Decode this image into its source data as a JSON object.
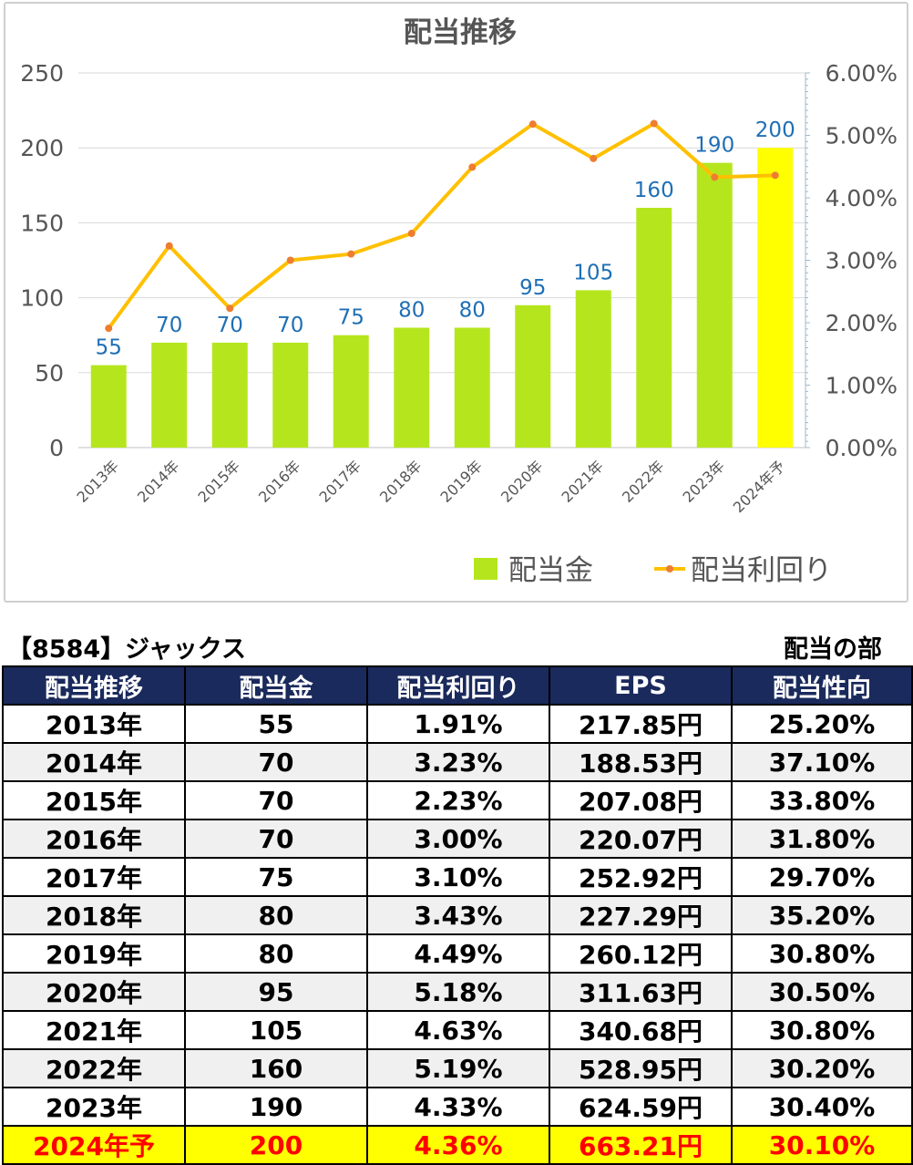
{
  "chart_data": {
    "type": "bar+line",
    "title": "配当推移",
    "categories": [
      "2013年",
      "2014年",
      "2015年",
      "2016年",
      "2017年",
      "2018年",
      "2019年",
      "2020年",
      "2021年",
      "2022年",
      "2023年",
      "2024年予"
    ],
    "series": [
      {
        "name": "配当金",
        "type": "bar",
        "axis": "left",
        "values": [
          55,
          70,
          70,
          70,
          75,
          80,
          80,
          95,
          105,
          160,
          190,
          200
        ],
        "colors": {
          "bar": "#b5e61d",
          "highlight_bar": "#ffff00",
          "label": "#1f6fb5"
        }
      },
      {
        "name": "配当利回り",
        "type": "line",
        "axis": "right",
        "values": [
          1.91,
          3.23,
          2.23,
          3.0,
          3.1,
          3.43,
          4.49,
          5.18,
          4.63,
          5.19,
          4.33,
          4.36
        ],
        "colors": {
          "line": "#ffc000",
          "marker": "#ed7d31"
        }
      }
    ],
    "y_left": {
      "min": 0,
      "max": 250,
      "ticks": [
        "0",
        "50",
        "100",
        "150",
        "200",
        "250"
      ]
    },
    "y_right": {
      "min": 0,
      "max": 6,
      "ticks": [
        "0.00%",
        "1.00%",
        "2.00%",
        "3.00%",
        "4.00%",
        "5.00%",
        "6.00%"
      ]
    },
    "highlight_index": 11,
    "grid": true,
    "legend_position": "bottom-right"
  },
  "table": {
    "title_left": "【8584】ジャックス",
    "title_right": "配当の部",
    "headers": [
      "配当推移",
      "配当金",
      "配当利回り",
      "EPS",
      "配当性向"
    ],
    "rows": [
      [
        "2013年",
        "55",
        "1.91%",
        "217.85円",
        "25.20%"
      ],
      [
        "2014年",
        "70",
        "3.23%",
        "188.53円",
        "37.10%"
      ],
      [
        "2015年",
        "70",
        "2.23%",
        "207.08円",
        "33.80%"
      ],
      [
        "2016年",
        "70",
        "3.00%",
        "220.07円",
        "31.80%"
      ],
      [
        "2017年",
        "75",
        "3.10%",
        "252.92円",
        "29.70%"
      ],
      [
        "2018年",
        "80",
        "3.43%",
        "227.29円",
        "35.20%"
      ],
      [
        "2019年",
        "80",
        "4.49%",
        "260.12円",
        "30.80%"
      ],
      [
        "2020年",
        "95",
        "5.18%",
        "311.63円",
        "30.50%"
      ],
      [
        "2021年",
        "105",
        "4.63%",
        "340.68円",
        "30.80%"
      ],
      [
        "2022年",
        "160",
        "5.19%",
        "528.95円",
        "30.20%"
      ],
      [
        "2023年",
        "190",
        "4.33%",
        "624.59円",
        "30.40%"
      ],
      [
        "2024年予",
        "200",
        "4.36%",
        "663.21円",
        "30.10%"
      ]
    ],
    "highlight_row": 11
  }
}
